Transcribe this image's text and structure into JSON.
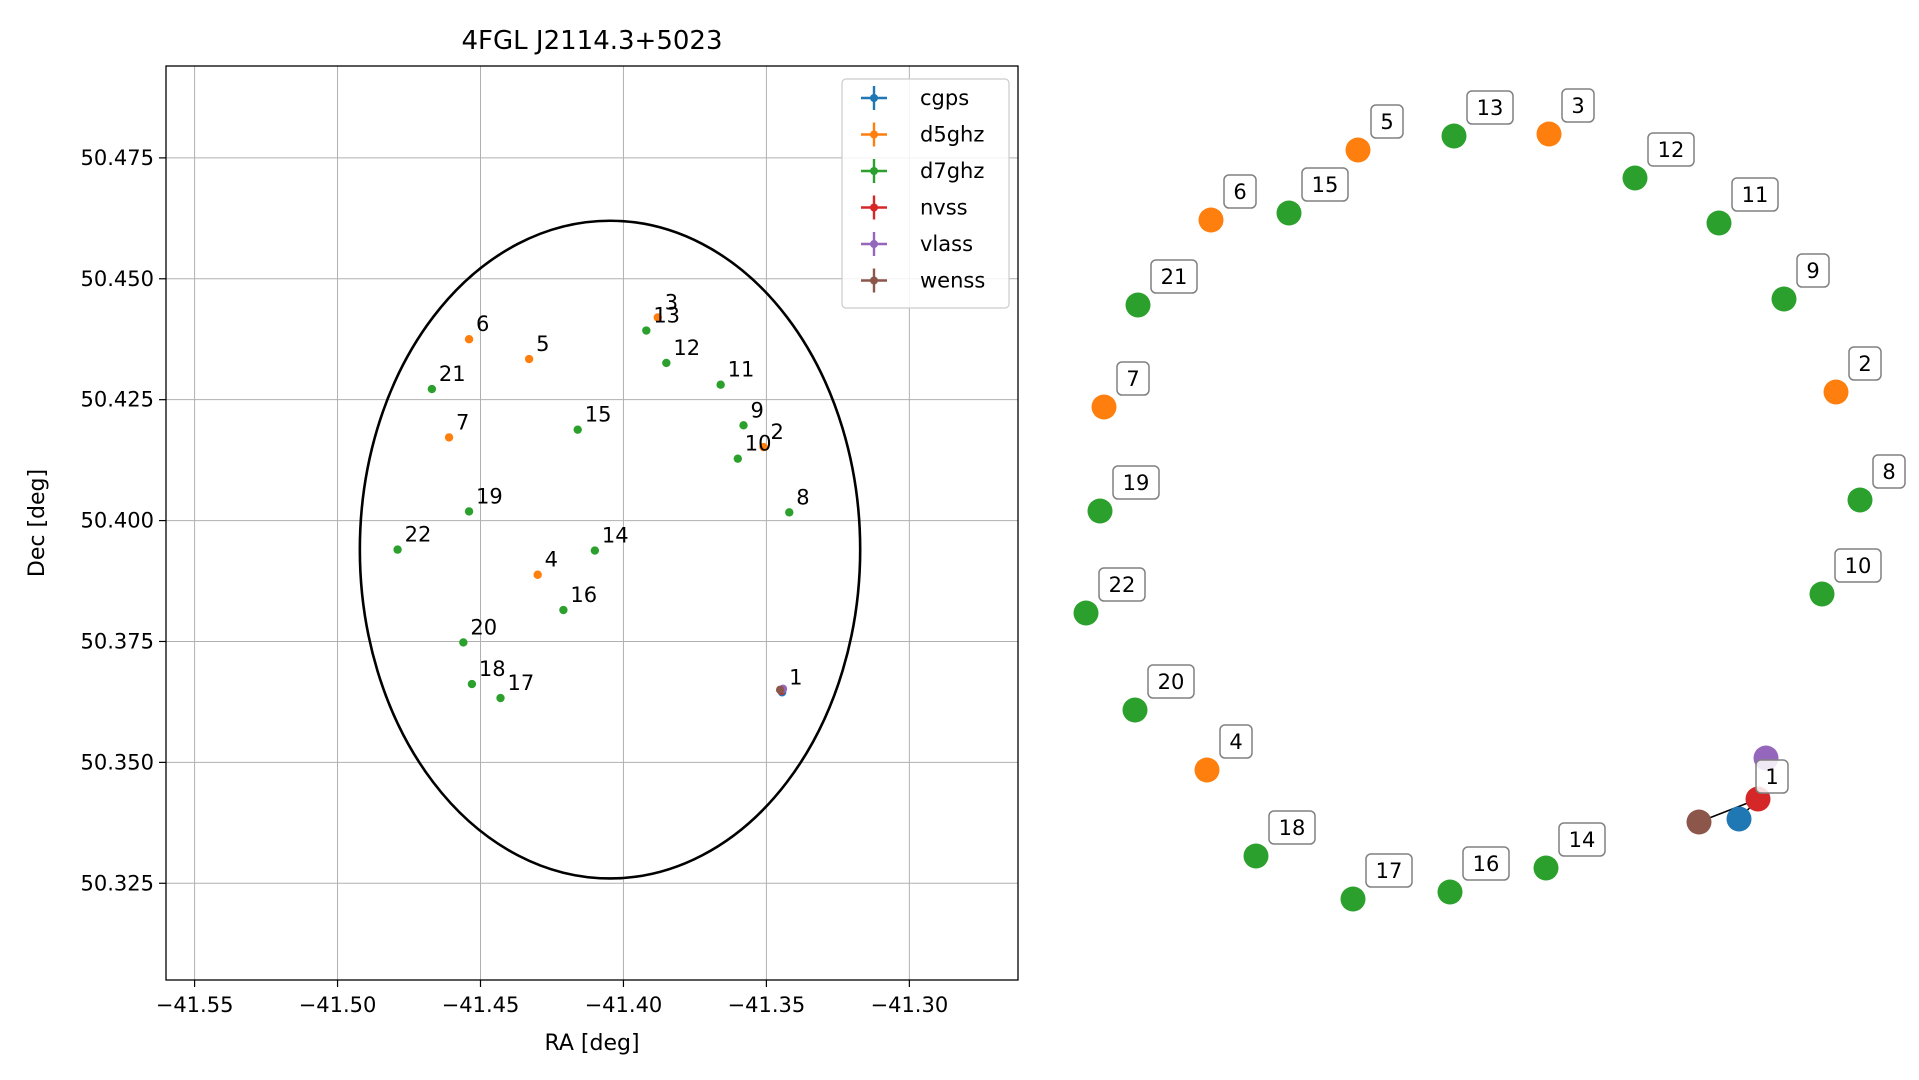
{
  "chart_data": [
    {
      "type": "scatter",
      "title": "4FGL J2114.3+5023",
      "xlabel": "RA [deg]",
      "ylabel": "Dec [deg]",
      "xlim": [
        -41.56,
        -41.262
      ],
      "ylim": [
        50.305,
        50.494
      ],
      "xticks": [
        -41.55,
        -41.5,
        -41.45,
        -41.4,
        -41.35,
        -41.3
      ],
      "xtick_labels": [
        "−41.55",
        "−41.50",
        "−41.45",
        "−41.40",
        "−41.35",
        "−41.30"
      ],
      "yticks": [
        50.325,
        50.35,
        50.375,
        50.4,
        50.425,
        50.45,
        50.475
      ],
      "ytick_labels": [
        "50.325",
        "50.350",
        "50.375",
        "50.400",
        "50.425",
        "50.450",
        "50.475"
      ],
      "grid": true,
      "legend_position": "top-right",
      "ellipse": {
        "center": [
          -41.4047,
          50.394
        ],
        "semi_axis_ra": 0.0875,
        "semi_axis_dec": 0.068,
        "color": "#000000"
      },
      "series": [
        {
          "name": "cgps",
          "color": "#1f77b4",
          "points": [
            {
              "label": "1",
              "x": -41.3445,
              "y": 50.3645
            }
          ]
        },
        {
          "name": "d5ghz",
          "color": "#ff7f0e",
          "points": [
            {
              "label": "2",
              "x": -41.351,
              "y": 50.4152
            },
            {
              "label": "3",
              "x": -41.388,
              "y": 50.442
            },
            {
              "label": "4",
              "x": -41.43,
              "y": 50.3888
            },
            {
              "label": "5",
              "x": -41.433,
              "y": 50.4334
            },
            {
              "label": "6",
              "x": -41.454,
              "y": 50.4375
            },
            {
              "label": "7",
              "x": -41.461,
              "y": 50.4172
            }
          ]
        },
        {
          "name": "d7ghz",
          "color": "#2ca02c",
          "points": [
            {
              "label": "8",
              "x": -41.342,
              "y": 50.4017
            },
            {
              "label": "9",
              "x": -41.358,
              "y": 50.4197
            },
            {
              "label": "10",
              "x": -41.36,
              "y": 50.4128
            },
            {
              "label": "11",
              "x": -41.366,
              "y": 50.4281
            },
            {
              "label": "12",
              "x": -41.385,
              "y": 50.4326
            },
            {
              "label": "13",
              "x": -41.392,
              "y": 50.4393
            },
            {
              "label": "14",
              "x": -41.41,
              "y": 50.3938
            },
            {
              "label": "15",
              "x": -41.416,
              "y": 50.4188
            },
            {
              "label": "16",
              "x": -41.421,
              "y": 50.3815
            },
            {
              "label": "17",
              "x": -41.443,
              "y": 50.3633
            },
            {
              "label": "18",
              "x": -41.453,
              "y": 50.3662
            },
            {
              "label": "19",
              "x": -41.454,
              "y": 50.4019
            },
            {
              "label": "20",
              "x": -41.456,
              "y": 50.3748
            },
            {
              "label": "21",
              "x": -41.467,
              "y": 50.4272
            },
            {
              "label": "22",
              "x": -41.479,
              "y": 50.394
            }
          ]
        },
        {
          "name": "nvss",
          "color": "#d62728",
          "points": [
            {
              "label": "1",
              "x": -41.3448,
              "y": 50.3648
            }
          ]
        },
        {
          "name": "vlass",
          "color": "#9467bd",
          "points": [
            {
              "label": "1",
              "x": -41.3442,
              "y": 50.3652
            }
          ]
        },
        {
          "name": "wenss",
          "color": "#8c564b",
          "points": [
            {
              "label": "1",
              "x": -41.3452,
              "y": 50.365
            }
          ]
        }
      ]
    },
    {
      "type": "scatter",
      "description": "circular label layout of the same sources",
      "points": [
        {
          "label": "1",
          "color": "#d62728",
          "boxed": true
        },
        {
          "label": "2",
          "color": "#ff7f0e",
          "boxed": true
        },
        {
          "label": "3",
          "color": "#ff7f0e",
          "boxed": true
        },
        {
          "label": "4",
          "color": "#ff7f0e",
          "boxed": true
        },
        {
          "label": "5",
          "color": "#ff7f0e",
          "boxed": true
        },
        {
          "label": "6",
          "color": "#ff7f0e",
          "boxed": true
        },
        {
          "label": "7",
          "color": "#ff7f0e",
          "boxed": true
        },
        {
          "label": "8",
          "color": "#2ca02c",
          "boxed": true
        },
        {
          "label": "9",
          "color": "#2ca02c",
          "boxed": true
        },
        {
          "label": "10",
          "color": "#2ca02c",
          "boxed": true
        },
        {
          "label": "11",
          "color": "#2ca02c",
          "boxed": true
        },
        {
          "label": "12",
          "color": "#2ca02c",
          "boxed": true
        },
        {
          "label": "13",
          "color": "#2ca02c",
          "boxed": true
        },
        {
          "label": "14",
          "color": "#2ca02c",
          "boxed": true
        },
        {
          "label": "15",
          "color": "#2ca02c",
          "boxed": true
        },
        {
          "label": "16",
          "color": "#2ca02c",
          "boxed": true
        },
        {
          "label": "17",
          "color": "#2ca02c",
          "boxed": true
        },
        {
          "label": "18",
          "color": "#2ca02c",
          "boxed": true
        },
        {
          "label": "19",
          "color": "#2ca02c",
          "boxed": true
        },
        {
          "label": "20",
          "color": "#2ca02c",
          "boxed": true
        },
        {
          "label": "21",
          "color": "#2ca02c",
          "boxed": true
        },
        {
          "label": "22",
          "color": "#2ca02c",
          "boxed": true
        }
      ],
      "cluster_1_colors": [
        "#1f77b4",
        "#d62728",
        "#9467bd",
        "#8c564b"
      ]
    }
  ]
}
